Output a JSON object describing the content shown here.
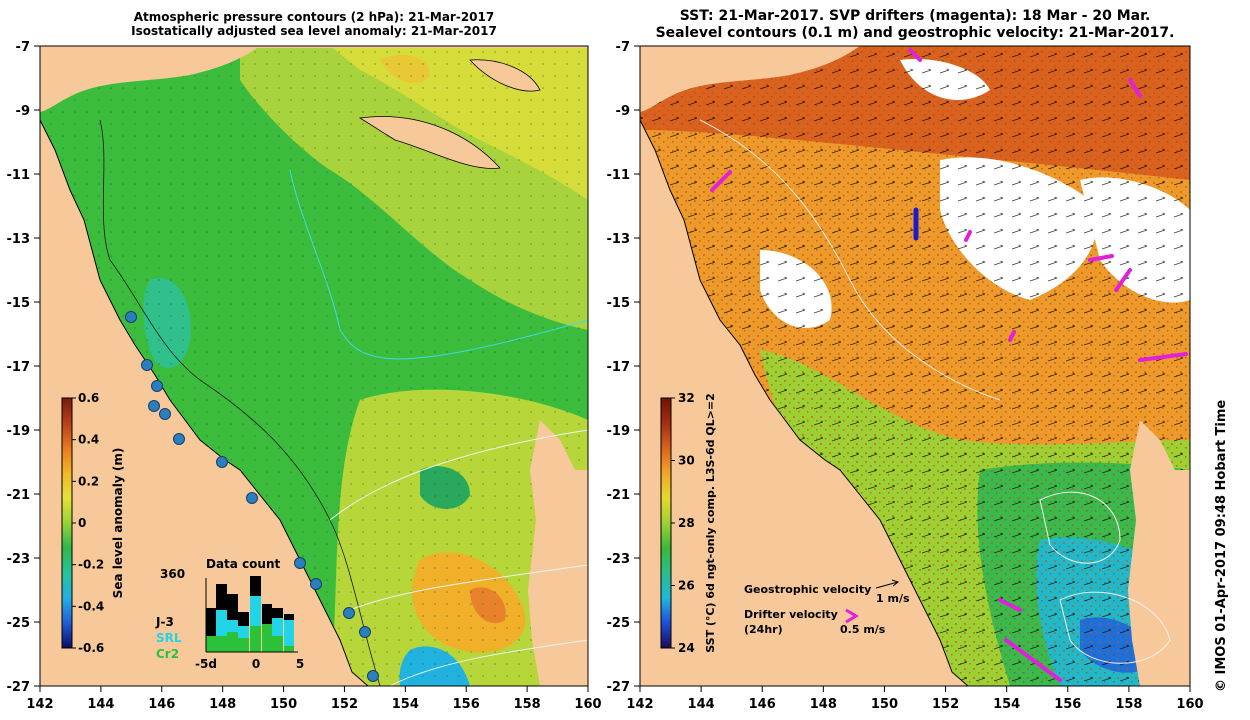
{
  "left_panel": {
    "title_line1": "Atmospheric pressure contours (2 hPa): 21-Mar-2017",
    "title_line2": "Isostatically adjusted sea level anomaly: 21-Mar-2017",
    "colorbar": {
      "label": "Sea level anomaly (m)",
      "ticks": [
        "0.6",
        "0.4",
        "0.2",
        "0",
        "-0.2",
        "-0.4",
        "-0.6"
      ],
      "colors": [
        "#0b0b63",
        "#1f5fd6",
        "#22b0e3",
        "#27c3a0",
        "#2db84a",
        "#98d23a",
        "#e3e23a",
        "#f2b62a",
        "#e67a20",
        "#b5401a",
        "#7a1a10"
      ]
    },
    "inset": {
      "title": "Data count",
      "y_label": "360",
      "x_ticks": [
        "-5d",
        "0",
        "5"
      ],
      "legend": [
        "J-3",
        "SRL",
        "Cr2"
      ],
      "legend_colors": [
        "#000000",
        "#22d5e6",
        "#2bc23a"
      ]
    }
  },
  "right_panel": {
    "title_line1": "SST: 21-Mar-2017. SVP drifters (magenta): 18 Mar - 20 Mar.",
    "title_line2": "Sealevel contours (0.1 m) and geostrophic velocity: 21-Mar-2017.",
    "colorbar": {
      "label": "SST (°C) 6d ngt-only comp. L3S-6d QL>=2",
      "ticks": [
        "32",
        "30",
        "28",
        "26",
        "24"
      ],
      "colors": [
        "#1a0a5a",
        "#1e4fd8",
        "#1fb7e0",
        "#27c08a",
        "#38b93a",
        "#9fd033",
        "#e6d92e",
        "#f0a628",
        "#d9621f",
        "#a32d14",
        "#6e1208"
      ]
    },
    "legend": {
      "geostrophic_label": "Geostrophic velocity",
      "geostrophic_scale": "1 m/s",
      "drifter_label": "Drifter velocity",
      "drifter_sub": "(24hr)",
      "drifter_scale": "0.5 m/s"
    }
  },
  "axes": {
    "x_ticks": [
      "142",
      "144",
      "146",
      "148",
      "150",
      "152",
      "154",
      "156",
      "158",
      "160"
    ],
    "y_ticks": [
      "-7",
      "-9",
      "-11",
      "-13",
      "-15",
      "-17",
      "-19",
      "-21",
      "-23",
      "-25",
      "-27"
    ]
  },
  "credit": "© IMOS 01-Apr-2017 09:48 Hobart Time",
  "colors": {
    "land": "#f7c99a",
    "coast": "#000000",
    "drifter": "#e21fdd",
    "tide_gauge": "#2a7fbf"
  }
}
